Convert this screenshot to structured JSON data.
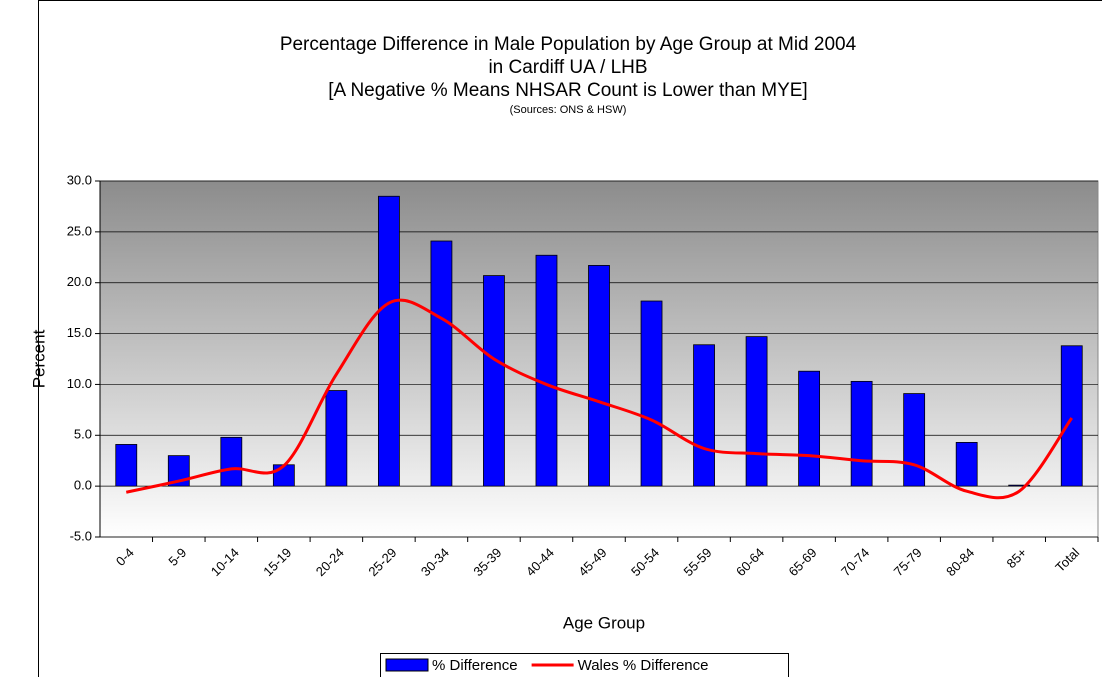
{
  "chart_data": {
    "type": "bar-line",
    "title": [
      "Percentage Difference in Male Population by Age Group at Mid 2004",
      "in Cardiff UA / LHB",
      "[A Negative % Means NHSAR Count is Lower than MYE]"
    ],
    "subtitle": "(Sources: ONS & HSW)",
    "x_label": "Age Group",
    "y_label": "Percent",
    "categories": [
      "0-4",
      "5-9",
      "10-14",
      "15-19",
      "20-24",
      "25-29",
      "30-34",
      "35-39",
      "40-44",
      "45-49",
      "50-54",
      "55-59",
      "60-64",
      "65-69",
      "70-74",
      "75-79",
      "80-84",
      "85+",
      "Total"
    ],
    "series": [
      {
        "name": "% Difference",
        "type": "bar",
        "color": "#0000ff",
        "values": [
          4.1,
          3.0,
          4.8,
          2.1,
          9.4,
          28.5,
          24.1,
          20.7,
          22.7,
          21.7,
          18.2,
          13.9,
          14.7,
          11.3,
          10.3,
          9.1,
          4.3,
          0.1,
          13.8
        ]
      },
      {
        "name": "Wales % Difference",
        "type": "line",
        "color": "#ff0000",
        "values": [
          -0.6,
          0.5,
          1.7,
          2.0,
          11.0,
          18.0,
          16.5,
          12.5,
          10.0,
          8.3,
          6.5,
          3.7,
          3.2,
          3.0,
          2.5,
          2.1,
          -0.5,
          -0.5,
          6.7
        ]
      }
    ],
    "ylim": [
      -5,
      30
    ],
    "yticks": [
      {
        "value": -5,
        "label": "-5.0"
      },
      {
        "value": 0,
        "label": "0.0"
      },
      {
        "value": 5,
        "label": "5.0"
      },
      {
        "value": 10,
        "label": "10.0"
      },
      {
        "value": 15,
        "label": "15.0"
      },
      {
        "value": 20,
        "label": "20.0"
      },
      {
        "value": 25,
        "label": "25.0"
      },
      {
        "value": 30,
        "label": "30.0"
      }
    ],
    "grid": true,
    "legend": "bottom"
  }
}
